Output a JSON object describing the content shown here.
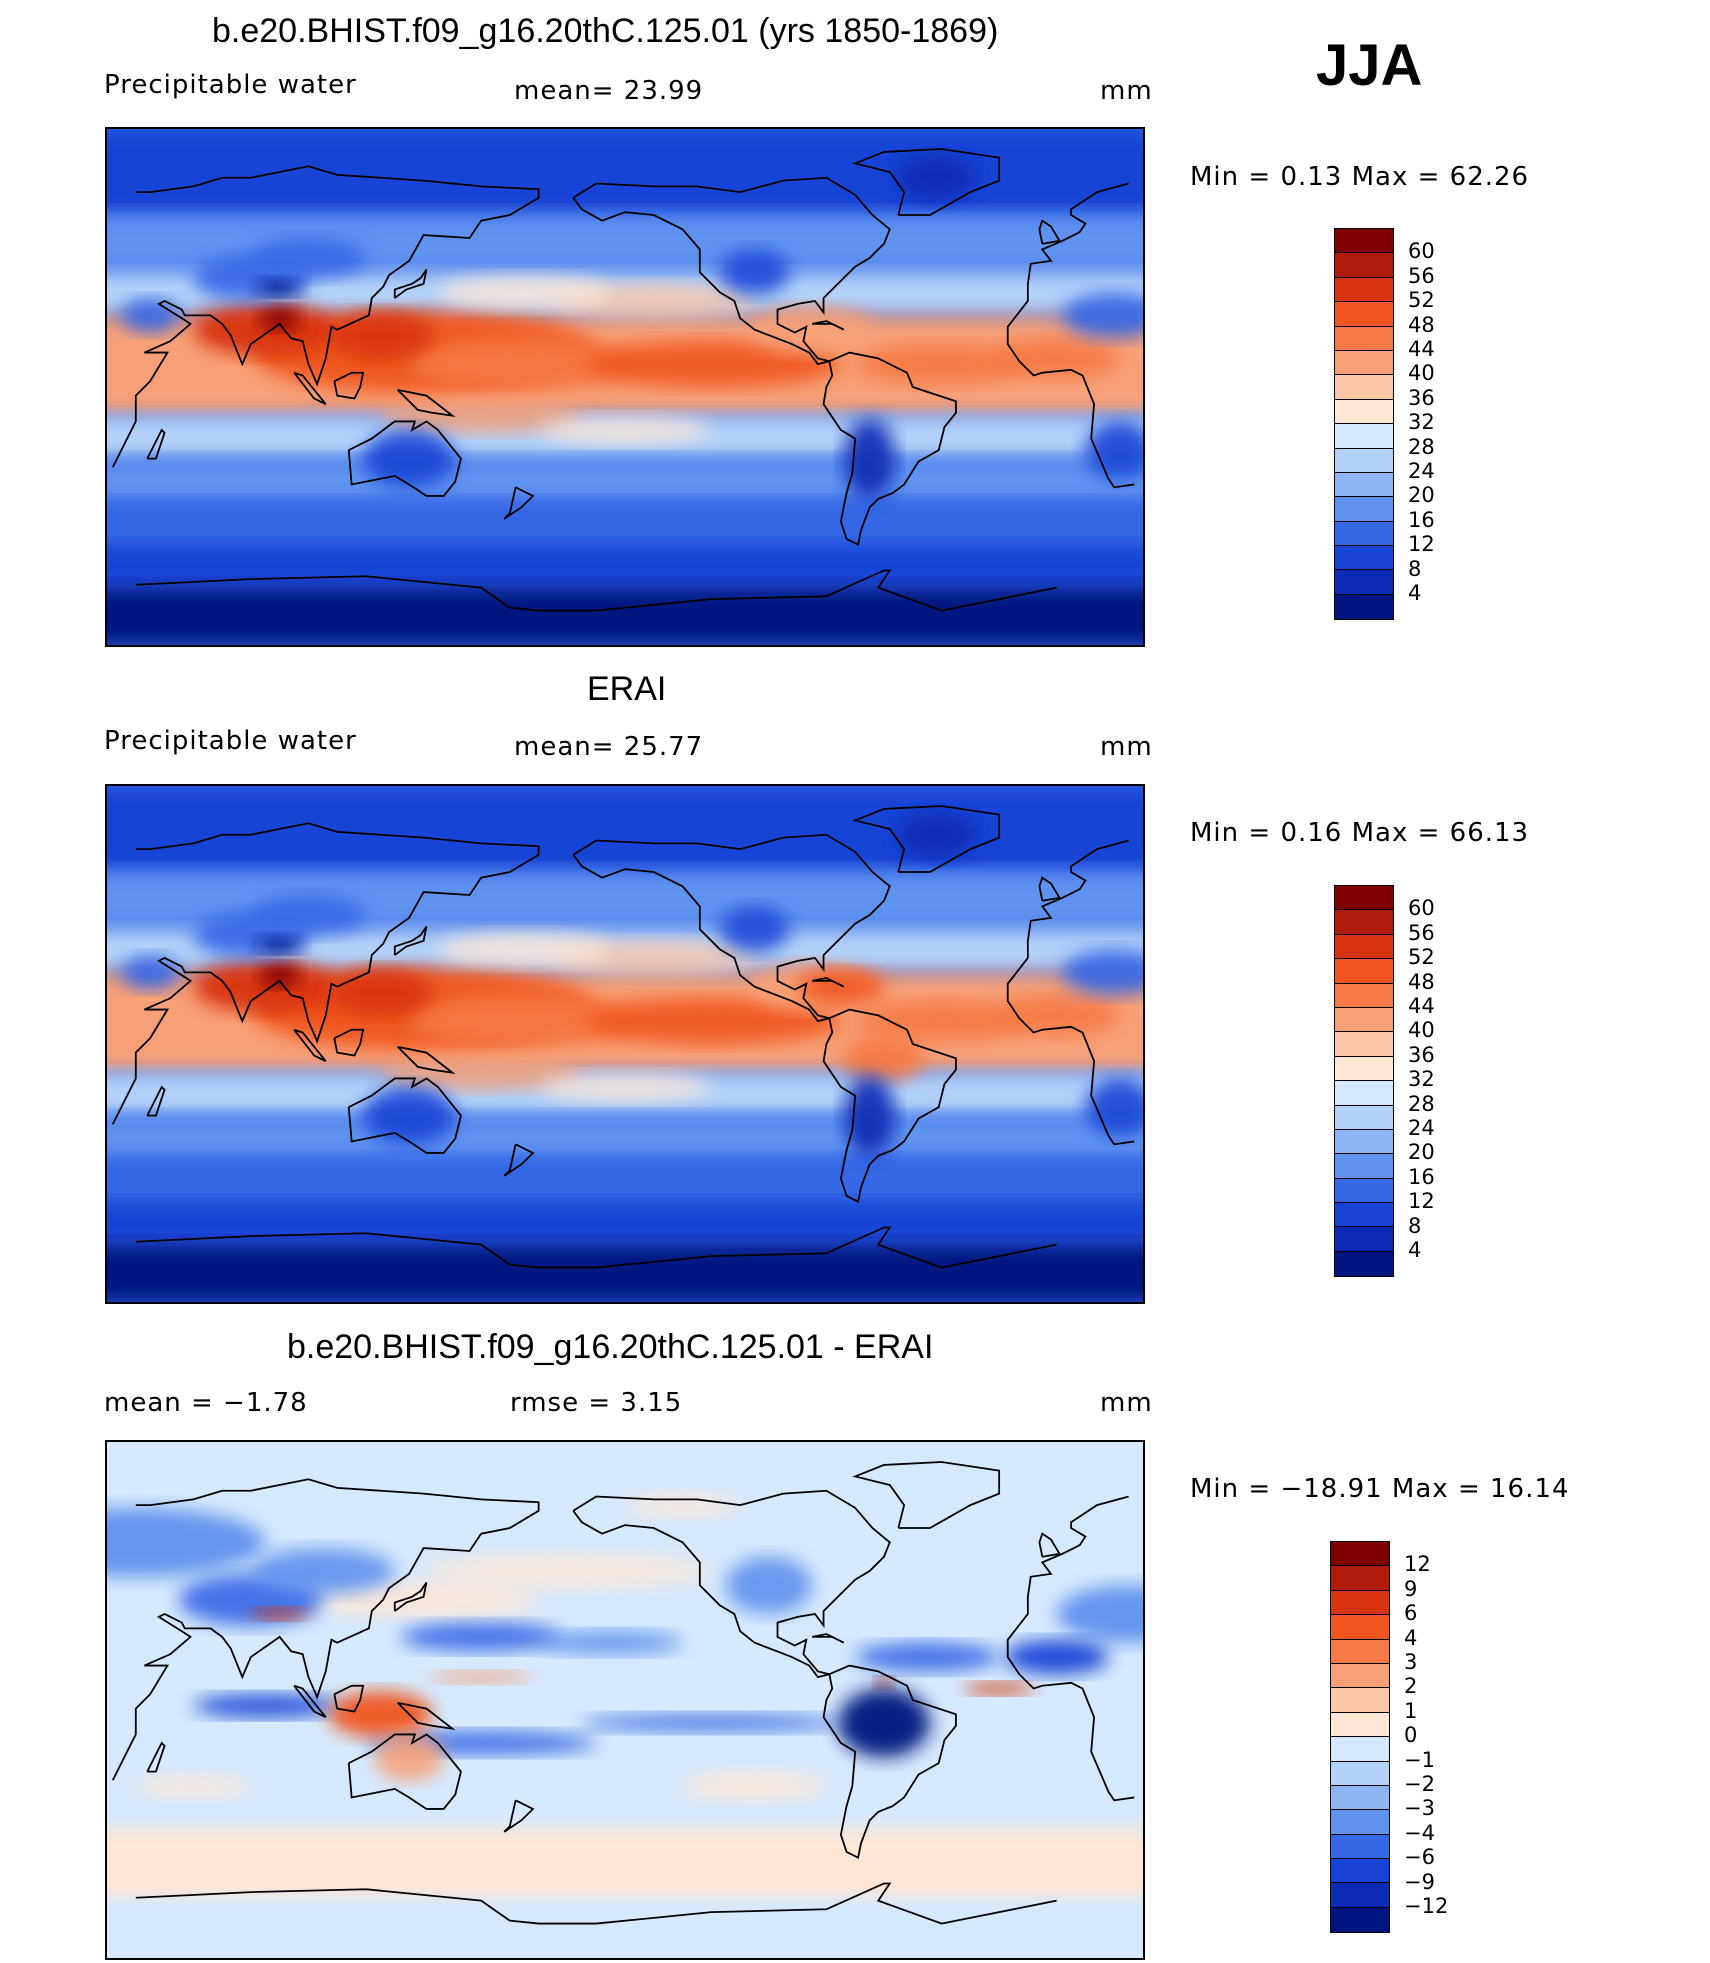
{
  "season": "JJA",
  "colors": {
    "warm": [
      "#7f0000",
      "#b01a0a",
      "#d8330f",
      "#f0541f",
      "#f57a45",
      "#f7a077",
      "#fbc7a8",
      "#fde6d5"
    ],
    "cool": [
      "#d6e8fb",
      "#b3d1f9",
      "#8db5f4",
      "#5f93ef",
      "#3568e6",
      "#1744d6",
      "#0b2bb4",
      "#00157f"
    ],
    "diff": [
      "#7f0000",
      "#b01a0a",
      "#d8330f",
      "#f0541f",
      "#f57a45",
      "#f7a077",
      "#fbc7a8",
      "#fde6d5",
      "#d6e8fb",
      "#b3d1f9",
      "#8db5f4",
      "#5f93ef",
      "#3568e6",
      "#1744d6",
      "#0b2bb4",
      "#00157f"
    ]
  },
  "panels": [
    {
      "title": "b.e20.BHIST.f09_g16.20thC.125.01 (yrs 1850-1869)",
      "left_label": "Precipitable  water",
      "mid_label": "mean=   23.99",
      "units": "mm",
      "minmax": "Min  =     0.13  Max  =    62.26",
      "levels": [
        "60",
        "56",
        "52",
        "48",
        "44",
        "40",
        "36",
        "32",
        "28",
        "24",
        "20",
        "16",
        "12",
        "8",
        "4"
      ],
      "field": "model"
    },
    {
      "title": "ERAI",
      "left_label": "Precipitable  water",
      "mid_label": "mean=   25.77",
      "units": "mm",
      "minmax": "Min  =     0.16  Max  =    66.13",
      "levels": [
        "60",
        "56",
        "52",
        "48",
        "44",
        "40",
        "36",
        "32",
        "28",
        "24",
        "20",
        "16",
        "12",
        "8",
        "4"
      ],
      "field": "obs"
    },
    {
      "title": "b.e20.BHIST.f09_g16.20thC.125.01 - ERAI",
      "left_label": "mean  =    −1.78",
      "mid_label": "rmse  =     3.15",
      "units": "mm",
      "minmax": "Min  = −18.91  Max  =    16.14",
      "levels": [
        "12",
        "9",
        "6",
        "4",
        "3",
        "2",
        "1",
        "0",
        "−1",
        "−2",
        "−3",
        "−4",
        "−6",
        "−9",
        "−12"
      ],
      "field": "diff"
    }
  ]
}
